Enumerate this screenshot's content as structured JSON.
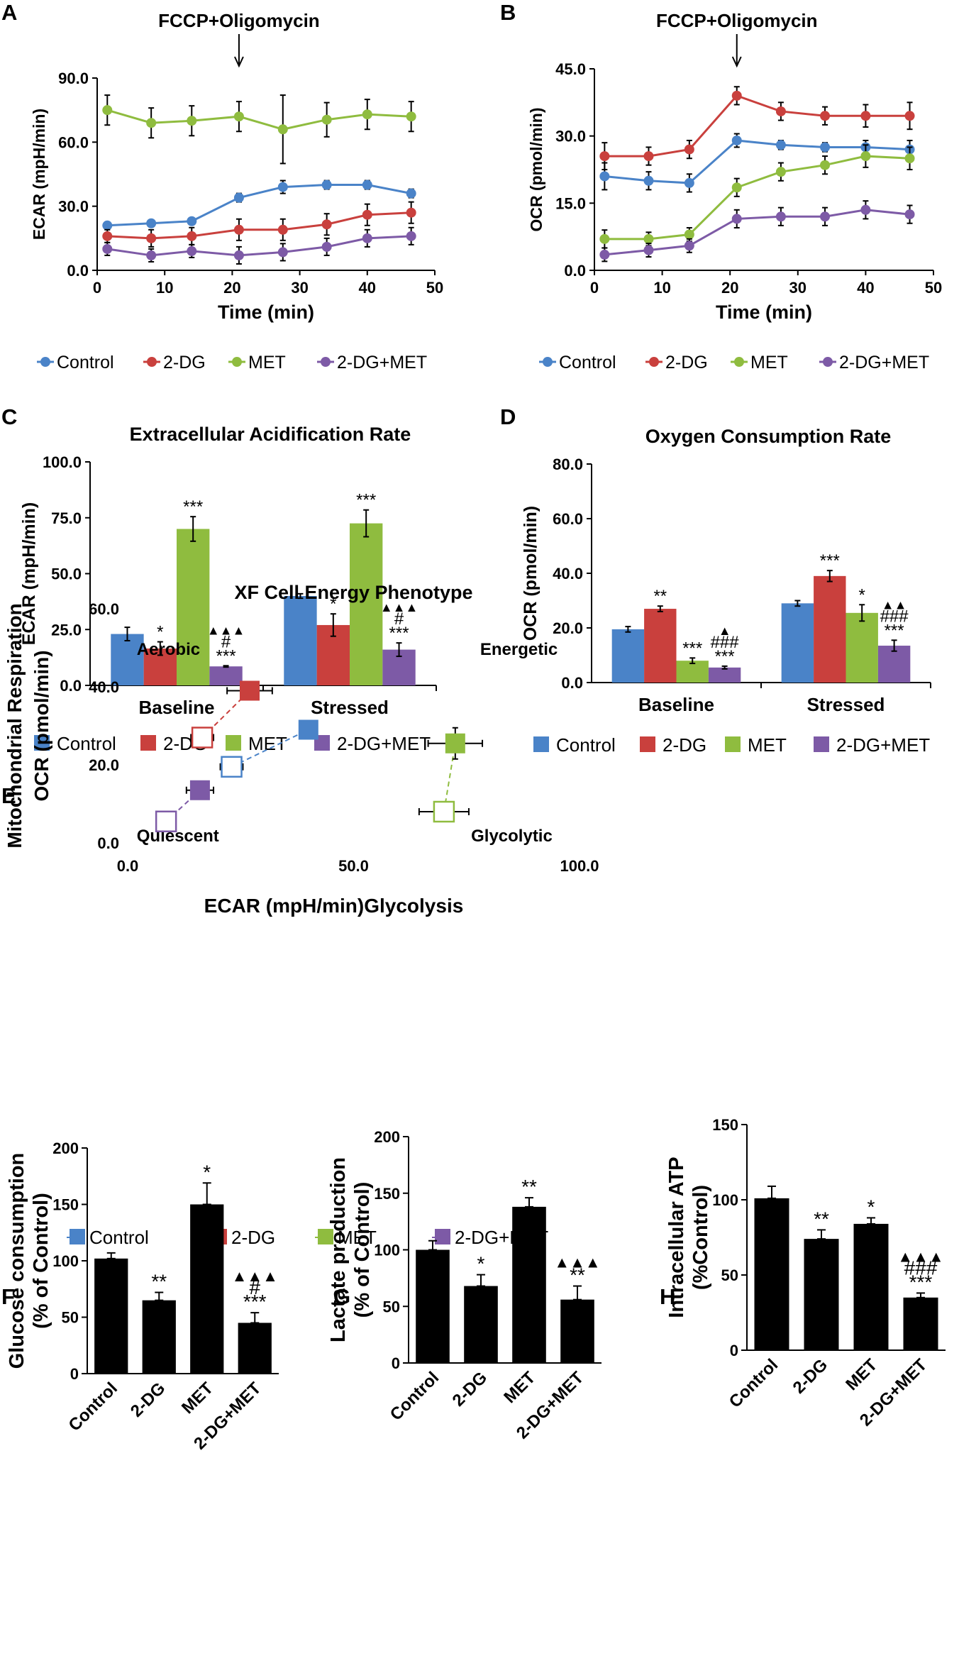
{
  "colors": {
    "control": "#4a83c8",
    "dg": "#c9403d",
    "met": "#8fbc3f",
    "combo": "#7d5aa6",
    "black": "#000000"
  },
  "legend": [
    "Control",
    "2-DG",
    "MET",
    "2-DG+MET"
  ],
  "chart_data": [
    {
      "panel": "A",
      "type": "line",
      "annotation": "FCCP+Oligomycin",
      "annotation_x": 21,
      "xlabel": "Time (min)",
      "ylabel": "ECAR (mpH/min)",
      "xlim": [
        0,
        50
      ],
      "ylim": [
        0,
        90
      ],
      "xticks": [
        "0",
        "10",
        "20",
        "30",
        "40",
        "50"
      ],
      "yticks": [
        "0.0",
        "30.0",
        "60.0",
        "90.0"
      ],
      "x": [
        1.5,
        8,
        14,
        21,
        27.5,
        34,
        40,
        46.5
      ],
      "series": [
        {
          "name": "Control",
          "values": [
            21,
            22,
            23,
            34,
            39,
            40,
            40,
            36
          ],
          "err": [
            1.5,
            1.5,
            1.5,
            2,
            3,
            2,
            2,
            2
          ]
        },
        {
          "name": "2-DG",
          "values": [
            16,
            15,
            16,
            19,
            19,
            21.5,
            26,
            27
          ],
          "err": [
            3,
            4,
            4,
            5,
            5,
            5,
            5,
            5
          ]
        },
        {
          "name": "MET",
          "values": [
            75,
            69,
            70,
            72,
            66,
            70.5,
            73,
            72
          ],
          "err": [
            7,
            7,
            7,
            7,
            16,
            8,
            7,
            7
          ]
        },
        {
          "name": "2-DG+MET",
          "values": [
            10,
            7,
            9,
            7,
            8.5,
            11,
            15,
            16
          ],
          "err": [
            3,
            3,
            3,
            4,
            4,
            4,
            4,
            4
          ]
        }
      ]
    },
    {
      "panel": "B",
      "type": "line",
      "annotation": "FCCP+Oligomycin",
      "annotation_x": 21,
      "xlabel": "Time (min)",
      "ylabel": "OCR (pmol/min)",
      "xlim": [
        0,
        50
      ],
      "ylim": [
        0,
        45
      ],
      "xticks": [
        "0",
        "10",
        "20",
        "30",
        "40",
        "50"
      ],
      "yticks": [
        "0.0",
        "15.0",
        "30.0",
        "45.0"
      ],
      "x": [
        1.5,
        8,
        14,
        21,
        27.5,
        34,
        40,
        46.5
      ],
      "series": [
        {
          "name": "Control",
          "values": [
            21,
            20,
            19.5,
            29,
            28,
            27.5,
            27.5,
            27
          ],
          "err": [
            3,
            2,
            2,
            1.5,
            1,
            1,
            1.5,
            2
          ]
        },
        {
          "name": "2-DG",
          "values": [
            25.5,
            25.5,
            27,
            39,
            35.5,
            34.5,
            34.5,
            34.5
          ],
          "err": [
            3,
            2,
            2,
            2,
            2,
            2,
            2.5,
            3
          ]
        },
        {
          "name": "MET",
          "values": [
            7,
            7,
            8,
            18.5,
            22,
            23.5,
            25.5,
            25
          ],
          "err": [
            2,
            1.5,
            1.5,
            2,
            2,
            2,
            2.5,
            2.5
          ]
        },
        {
          "name": "2-DG+MET",
          "values": [
            3.5,
            4.5,
            5.5,
            11.5,
            12,
            12,
            13.5,
            12.5
          ],
          "err": [
            1.5,
            1.5,
            1.5,
            2,
            2,
            2,
            2,
            2
          ]
        }
      ]
    },
    {
      "panel": "C",
      "type": "bar",
      "title": "Extracellular Acidification Rate",
      "ylabel": "ECAR (mpH/min)",
      "ylim": [
        0,
        100
      ],
      "yticks": [
        "0.0",
        "25.0",
        "50.0",
        "75.0",
        "100.0"
      ],
      "categories": [
        "Baseline",
        "Stressed"
      ],
      "series": [
        {
          "name": "Control",
          "values": [
            23,
            40
          ],
          "err": [
            3,
            1
          ],
          "labels": [
            "",
            ""
          ]
        },
        {
          "name": "2-DG",
          "values": [
            16.5,
            27
          ],
          "err": [
            3,
            5
          ],
          "labels": [
            "*",
            "*"
          ]
        },
        {
          "name": "MET",
          "values": [
            70,
            72.5
          ],
          "err": [
            5.5,
            6
          ],
          "labels": [
            "***",
            "***"
          ]
        },
        {
          "name": "2-DG+MET",
          "values": [
            8.5,
            16
          ],
          "err": [
            0.3,
            3
          ],
          "labels": [
            "▲▲▲|#|***",
            "▲▲▲|#|***"
          ]
        }
      ]
    },
    {
      "panel": "D",
      "type": "bar",
      "title": "Oxygen Consumption Rate",
      "ylabel": "OCR (pmol/min)",
      "ylim": [
        0,
        80
      ],
      "yticks": [
        "0.0",
        "20.0",
        "40.0",
        "60.0",
        "80.0"
      ],
      "categories": [
        "Baseline",
        "Stressed"
      ],
      "series": [
        {
          "name": "Control",
          "values": [
            19.5,
            29
          ],
          "err": [
            1,
            1
          ],
          "labels": [
            "",
            ""
          ]
        },
        {
          "name": "2-DG",
          "values": [
            27,
            39
          ],
          "err": [
            1,
            2
          ],
          "labels": [
            "**",
            "***"
          ]
        },
        {
          "name": "MET",
          "values": [
            8,
            25.5
          ],
          "err": [
            1,
            3
          ],
          "labels": [
            "***",
            "*"
          ]
        },
        {
          "name": "2-DG+MET",
          "values": [
            5.5,
            13.5
          ],
          "err": [
            0.5,
            2
          ],
          "labels": [
            "▲|###|***",
            "▲▲|###|***"
          ]
        }
      ]
    },
    {
      "panel": "E",
      "type": "scatter",
      "title": "XF Cell Energy Phenotype",
      "xlabel": "ECAR (mpH/min)Glycolysis",
      "ylabel_lines": [
        "Mitochondrial Respiration",
        "OCR (pmol/min)"
      ],
      "xlim": [
        0,
        100
      ],
      "ylim": [
        0,
        60
      ],
      "xticks": [
        "0.0",
        "50.0",
        "100.0"
      ],
      "yticks": [
        "0.0",
        "20.0",
        "40.0",
        "60.0"
      ],
      "quadrants": [
        "Aerobic",
        "Energetic",
        "Quiescent",
        "Glycolytic"
      ],
      "series": [
        {
          "name": "Control",
          "baseline": [
            23,
            19.5
          ],
          "stressed": [
            40,
            29
          ],
          "xerr": [
            2.5,
            1
          ]
        },
        {
          "name": "2-DG",
          "baseline": [
            16.5,
            27
          ],
          "stressed": [
            27,
            39
          ],
          "xerr": [
            2.5,
            5
          ]
        },
        {
          "name": "MET",
          "baseline": [
            70,
            8
          ],
          "stressed": [
            72.5,
            25.5
          ],
          "xerr": [
            5.5,
            6
          ]
        },
        {
          "name": "2-DG+MET",
          "baseline": [
            8.5,
            5.5
          ],
          "stressed": [
            16,
            13.5
          ],
          "xerr": [
            0.5,
            3
          ]
        }
      ]
    },
    {
      "panel": "F",
      "type": "bar",
      "ylabel_lines": [
        "Glucose consumption",
        "(% of Control)"
      ],
      "ylim": [
        0,
        200
      ],
      "yticks": [
        "0",
        "50",
        "100",
        "150",
        "200"
      ],
      "categories": [
        "Control",
        "2-DG",
        "MET",
        "2-DG+MET"
      ],
      "values": [
        102,
        65,
        150,
        45
      ],
      "err": [
        5,
        7,
        19,
        9
      ],
      "labels": [
        "",
        "**",
        "*",
        "▲▲▲|#|***"
      ]
    },
    {
      "panel": "G",
      "type": "bar",
      "ylabel_lines": [
        "Lactate production",
        "(% of Control)"
      ],
      "ylim": [
        0,
        200
      ],
      "yticks": [
        "0",
        "50",
        "100",
        "150",
        "200"
      ],
      "categories": [
        "Control",
        "2-DG",
        "MET",
        "2-DG+MET"
      ],
      "values": [
        100,
        68,
        138,
        56
      ],
      "err": [
        8,
        10,
        8,
        12
      ],
      "labels": [
        "",
        "*",
        "**",
        "▲▲▲|**"
      ]
    },
    {
      "panel": "H",
      "type": "bar",
      "ylabel_lines": [
        "Intracellular ATP",
        "(%Control)"
      ],
      "ylim": [
        0,
        150
      ],
      "yticks": [
        "0",
        "50",
        "100",
        "150"
      ],
      "categories": [
        "Control",
        "2-DG",
        "MET",
        "2-DG+MET"
      ],
      "values": [
        101,
        74,
        84,
        35
      ],
      "err": [
        8,
        6,
        4,
        3
      ],
      "labels": [
        "",
        "**",
        "*",
        "▲▲▲|###|***"
      ]
    }
  ]
}
